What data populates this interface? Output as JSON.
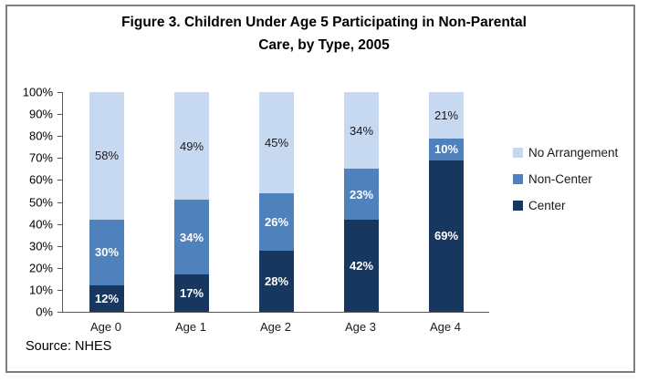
{
  "figure": {
    "title_lines": [
      "Figure 3. Children Under Age 5 Participating in Non-Parental",
      "Care, by Type, 2005"
    ],
    "source": "Source: NHES"
  },
  "chart_data": {
    "type": "bar",
    "stacked": true,
    "percent_stacked": true,
    "title": "Figure 3. Children Under Age 5 Participating in Non-Parental Care, by Type, 2005",
    "xlabel": "",
    "ylabel": "",
    "categories": [
      "Age 0",
      "Age 1",
      "Age 2",
      "Age 3",
      "Age 4"
    ],
    "series": [
      {
        "name": "Center",
        "values": [
          12,
          17,
          28,
          42,
          69
        ],
        "color": "#17375E",
        "label_color": "#FFFFFF",
        "label_bold": true
      },
      {
        "name": "Non-Center",
        "values": [
          30,
          34,
          26,
          23,
          10
        ],
        "color": "#4F81BD",
        "label_color": "#FFFFFF",
        "label_bold": true
      },
      {
        "name": "No Arrangement",
        "values": [
          58,
          49,
          45,
          34,
          21
        ],
        "color": "#C6D9F1",
        "label_color": "#1A1A1A",
        "label_bold": false
      }
    ],
    "value_suffix": "%",
    "ylim": [
      0,
      100
    ],
    "ytick_step": 10,
    "ytick_labels": [
      "0%",
      "10%",
      "20%",
      "30%",
      "40%",
      "50%",
      "60%",
      "70%",
      "80%",
      "90%",
      "100%"
    ],
    "grid": false,
    "legend": {
      "position": "right",
      "items": [
        "No Arrangement",
        "Non-Center",
        "Center"
      ]
    }
  }
}
